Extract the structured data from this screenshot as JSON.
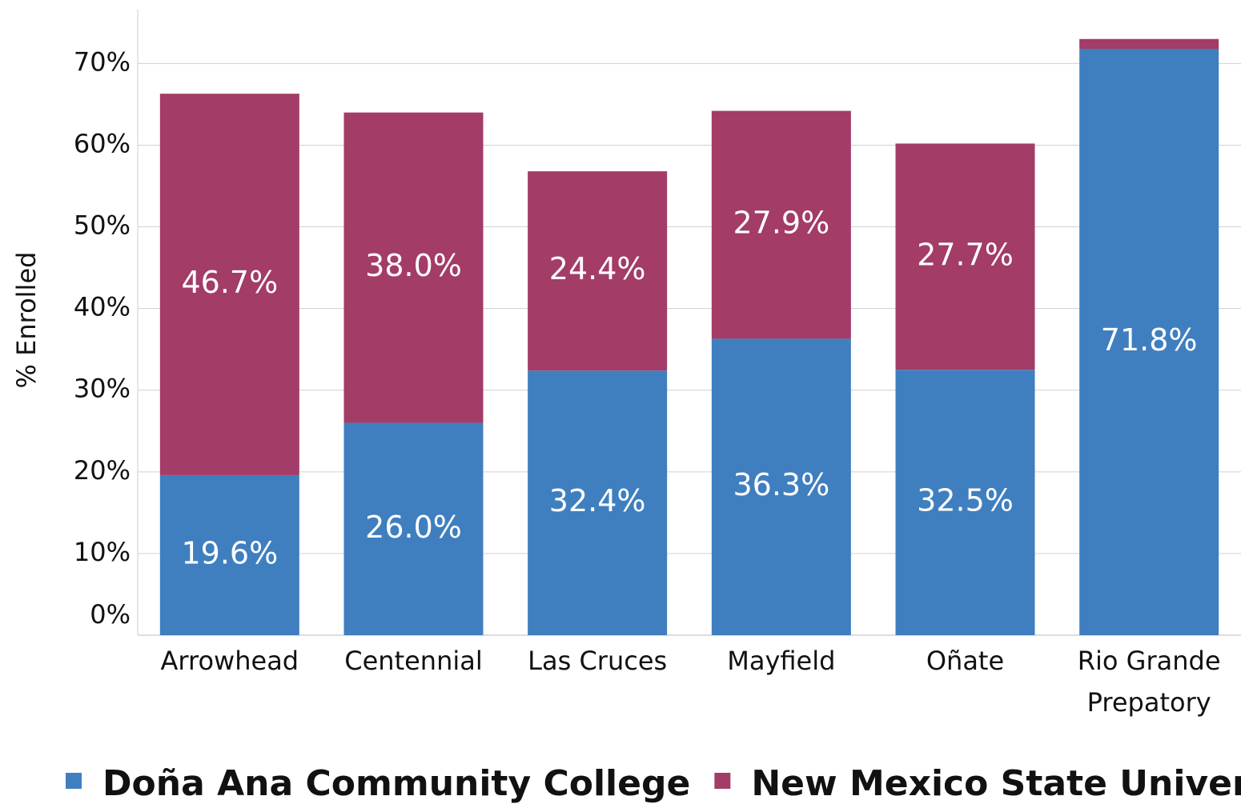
{
  "chart_data": {
    "type": "stacked_bar",
    "y_label": "% Enrolled",
    "categories": [
      "Arrowhead",
      "Centennial",
      "Las Cruces",
      "Mayfield",
      "Oñate",
      "Rio Grande\nPrepatory"
    ],
    "series": [
      {
        "name": "Doña Ana Community College",
        "color": "#3f7fbf",
        "values": [
          19.6,
          26.0,
          32.4,
          36.3,
          32.5,
          71.8
        ],
        "value_labels": [
          "19.6%",
          "26.0%",
          "32.4%",
          "36.3%",
          "32.5%",
          "71.8%"
        ]
      },
      {
        "name": "New Mexico State University",
        "color": "#a33c67",
        "values": [
          46.7,
          38.0,
          24.4,
          27.9,
          27.7,
          1.2
        ],
        "value_labels": [
          "46.7%",
          "38.0%",
          "24.4%",
          "27.9%",
          "27.7%",
          null
        ]
      }
    ],
    "ylim": [
      0,
      76.6
    ],
    "yticks": [
      {
        "value": 0,
        "label": "0%"
      },
      {
        "value": 10,
        "label": "10%"
      },
      {
        "value": 20,
        "label": "20%"
      },
      {
        "value": 30,
        "label": "30%"
      },
      {
        "value": 40,
        "label": "40%"
      },
      {
        "value": 50,
        "label": "50%"
      },
      {
        "value": 60,
        "label": "60%"
      },
      {
        "value": 70,
        "label": "70%"
      }
    ],
    "grid": true,
    "legend": "bottom"
  }
}
